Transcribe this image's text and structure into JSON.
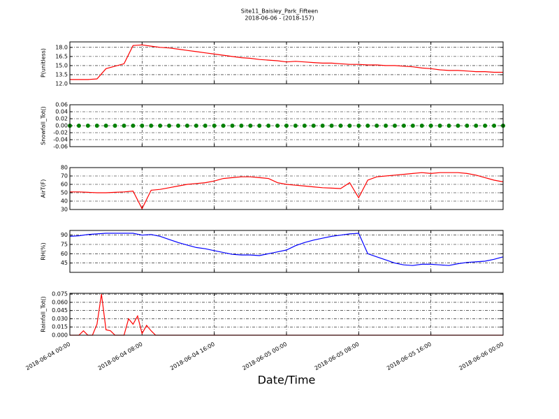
{
  "title": "Site11_Baisley_Park_Fifteen",
  "subtitle": "2018-06-06 - (2018-157)",
  "xlabel": "Date/Time",
  "xlim": [
    "2018-06-04 00:00",
    "2018-06-06 00:00"
  ],
  "xticks": [
    "2018-06-04 00:00",
    "2018-06-04 08:00",
    "2018-06-04 16:00",
    "2018-06-05 00:00",
    "2018-06-05 08:00",
    "2018-06-05 16:00",
    "2018-06-06 00:00"
  ],
  "chart_data": [
    {
      "type": "line",
      "ylabel": "P(unitless)",
      "color": "#ff0000",
      "grid": true,
      "ylim": [
        12,
        18.9
      ],
      "yticks": [
        {
          "value": 12,
          "label": "12.0"
        },
        13.5,
        {
          "value": 15,
          "label": "15.0"
        },
        16.5,
        {
          "value": 18,
          "label": "18.0"
        }
      ],
      "x": [
        "2018-06-04 00:00",
        "2018-06-04 01:00",
        "2018-06-04 02:00",
        "2018-06-04 03:00",
        "2018-06-04 04:00",
        "2018-06-04 05:00",
        "2018-06-04 06:00",
        "2018-06-04 07:00",
        "2018-06-04 08:00",
        "2018-06-04 09:00",
        "2018-06-04 10:00",
        "2018-06-04 11:00",
        "2018-06-04 12:00",
        "2018-06-04 13:00",
        "2018-06-04 14:00",
        "2018-06-04 15:00",
        "2018-06-04 16:00",
        "2018-06-04 17:00",
        "2018-06-04 18:00",
        "2018-06-04 19:00",
        "2018-06-04 20:00",
        "2018-06-04 21:00",
        "2018-06-04 22:00",
        "2018-06-04 23:00",
        "2018-06-05 00:00",
        "2018-06-05 01:00",
        "2018-06-05 02:00",
        "2018-06-05 03:00",
        "2018-06-05 04:00",
        "2018-06-05 05:00",
        "2018-06-05 06:00",
        "2018-06-05 07:00",
        "2018-06-05 08:00",
        "2018-06-05 09:00",
        "2018-06-05 10:00",
        "2018-06-05 11:00",
        "2018-06-05 12:00",
        "2018-06-05 13:00",
        "2018-06-05 14:00",
        "2018-06-05 15:00",
        "2018-06-05 16:00",
        "2018-06-05 17:00",
        "2018-06-05 18:00",
        "2018-06-05 19:00",
        "2018-06-05 20:00",
        "2018-06-05 21:00",
        "2018-06-05 22:00",
        "2018-06-05 23:00",
        "2018-06-06 00:00"
      ],
      "values": [
        12.7,
        12.7,
        12.7,
        12.8,
        14.5,
        14.9,
        15.3,
        18.3,
        18.4,
        18.2,
        18.0,
        17.9,
        17.7,
        17.5,
        17.3,
        17.1,
        16.9,
        16.7,
        16.5,
        16.3,
        16.2,
        16.0,
        15.9,
        15.8,
        15.6,
        15.7,
        15.6,
        15.5,
        15.4,
        15.4,
        15.3,
        15.2,
        15.2,
        15.1,
        15.1,
        15.0,
        15.0,
        14.9,
        14.8,
        14.6,
        14.5,
        14.3,
        14.2,
        14.2,
        14.1,
        14.0,
        14.0,
        13.9,
        13.9
      ]
    },
    {
      "type": "scatter",
      "ylabel": "Snowfall_Tot()",
      "color": "#008000",
      "grid": true,
      "ylim": [
        -0.06,
        0.06
      ],
      "yticks": [
        -0.06,
        -0.04,
        -0.02,
        {
          "value": 0,
          "label": "0.00"
        },
        0.02,
        0.04,
        0.06
      ],
      "x": [
        "2018-06-04 00:00",
        "2018-06-04 01:00",
        "2018-06-04 02:00",
        "2018-06-04 03:00",
        "2018-06-04 04:00",
        "2018-06-04 05:00",
        "2018-06-04 06:00",
        "2018-06-04 07:00",
        "2018-06-04 08:00",
        "2018-06-04 09:00",
        "2018-06-04 10:00",
        "2018-06-04 11:00",
        "2018-06-04 12:00",
        "2018-06-04 13:00",
        "2018-06-04 14:00",
        "2018-06-04 15:00",
        "2018-06-04 16:00",
        "2018-06-04 17:00",
        "2018-06-04 18:00",
        "2018-06-04 19:00",
        "2018-06-04 20:00",
        "2018-06-04 21:00",
        "2018-06-04 22:00",
        "2018-06-04 23:00",
        "2018-06-05 00:00",
        "2018-06-05 01:00",
        "2018-06-05 02:00",
        "2018-06-05 03:00",
        "2018-06-05 04:00",
        "2018-06-05 05:00",
        "2018-06-05 06:00",
        "2018-06-05 07:00",
        "2018-06-05 08:00",
        "2018-06-05 09:00",
        "2018-06-05 10:00",
        "2018-06-05 11:00",
        "2018-06-05 12:00",
        "2018-06-05 13:00",
        "2018-06-05 14:00",
        "2018-06-05 15:00",
        "2018-06-05 16:00",
        "2018-06-05 17:00",
        "2018-06-05 18:00",
        "2018-06-05 19:00",
        "2018-06-05 20:00",
        "2018-06-05 21:00",
        "2018-06-05 22:00",
        "2018-06-05 23:00",
        "2018-06-06 00:00"
      ],
      "values": [
        0,
        0,
        0,
        0,
        0,
        0,
        0,
        0,
        0,
        0,
        0,
        0,
        0,
        0,
        0,
        0,
        0,
        0,
        0,
        0,
        0,
        0,
        0,
        0,
        0,
        0,
        0,
        0,
        0,
        0,
        0,
        0,
        0,
        0,
        0,
        0,
        0,
        0,
        0,
        0,
        0,
        0,
        0,
        0,
        0,
        0,
        0,
        0,
        0
      ]
    },
    {
      "type": "line",
      "ylabel": "AirT(F)",
      "color": "#ff0000",
      "grid": true,
      "ylim": [
        30,
        80
      ],
      "yticks": [
        30,
        40,
        50,
        60,
        70,
        80
      ],
      "x": [
        "2018-06-04 00:00",
        "2018-06-04 01:00",
        "2018-06-04 02:00",
        "2018-06-04 03:00",
        "2018-06-04 04:00",
        "2018-06-04 05:00",
        "2018-06-04 06:00",
        "2018-06-04 07:00",
        "2018-06-04 08:00",
        "2018-06-04 09:00",
        "2018-06-04 10:00",
        "2018-06-04 11:00",
        "2018-06-04 12:00",
        "2018-06-04 13:00",
        "2018-06-04 14:00",
        "2018-06-04 15:00",
        "2018-06-04 16:00",
        "2018-06-04 17:00",
        "2018-06-04 18:00",
        "2018-06-04 19:00",
        "2018-06-04 20:00",
        "2018-06-04 21:00",
        "2018-06-04 22:00",
        "2018-06-04 23:00",
        "2018-06-05 00:00",
        "2018-06-05 01:00",
        "2018-06-05 02:00",
        "2018-06-05 03:00",
        "2018-06-05 04:00",
        "2018-06-05 05:00",
        "2018-06-05 06:00",
        "2018-06-05 07:00",
        "2018-06-05 08:00",
        "2018-06-05 09:00",
        "2018-06-05 10:00",
        "2018-06-05 11:00",
        "2018-06-05 12:00",
        "2018-06-05 13:00",
        "2018-06-05 14:00",
        "2018-06-05 15:00",
        "2018-06-05 16:00",
        "2018-06-05 17:00",
        "2018-06-05 18:00",
        "2018-06-05 19:00",
        "2018-06-05 20:00",
        "2018-06-05 21:00",
        "2018-06-05 22:00",
        "2018-06-05 23:00",
        "2018-06-06 00:00"
      ],
      "values": [
        51,
        51,
        50.5,
        50,
        50,
        50.5,
        51,
        52,
        31,
        53,
        54,
        56,
        58,
        60,
        61,
        62,
        64,
        67,
        68,
        69,
        69,
        68,
        67,
        62,
        60,
        59,
        58,
        57,
        56,
        55.5,
        55,
        62,
        44,
        65,
        69,
        70,
        71,
        72,
        73,
        74,
        73,
        74,
        74,
        74,
        73,
        71,
        68,
        65,
        63
      ]
    },
    {
      "type": "line",
      "ylabel": "RH(%)",
      "color": "#0000ff",
      "grid": true,
      "ylim": [
        30,
        97.5
      ],
      "yticks": [
        45,
        60,
        75,
        90
      ],
      "x": [
        "2018-06-04 00:00",
        "2018-06-04 01:00",
        "2018-06-04 02:00",
        "2018-06-04 03:00",
        "2018-06-04 04:00",
        "2018-06-04 05:00",
        "2018-06-04 06:00",
        "2018-06-04 07:00",
        "2018-06-04 08:00",
        "2018-06-04 09:00",
        "2018-06-04 10:00",
        "2018-06-04 11:00",
        "2018-06-04 12:00",
        "2018-06-04 13:00",
        "2018-06-04 14:00",
        "2018-06-04 15:00",
        "2018-06-04 16:00",
        "2018-06-04 17:00",
        "2018-06-04 18:00",
        "2018-06-04 19:00",
        "2018-06-04 20:00",
        "2018-06-04 21:00",
        "2018-06-04 22:00",
        "2018-06-04 23:00",
        "2018-06-05 00:00",
        "2018-06-05 01:00",
        "2018-06-05 02:00",
        "2018-06-05 03:00",
        "2018-06-05 04:00",
        "2018-06-05 05:00",
        "2018-06-05 06:00",
        "2018-06-05 07:00",
        "2018-06-05 08:00",
        "2018-06-05 09:00",
        "2018-06-05 10:00",
        "2018-06-05 11:00",
        "2018-06-05 12:00",
        "2018-06-05 13:00",
        "2018-06-05 14:00",
        "2018-06-05 15:00",
        "2018-06-05 16:00",
        "2018-06-05 17:00",
        "2018-06-05 18:00",
        "2018-06-05 19:00",
        "2018-06-05 20:00",
        "2018-06-05 21:00",
        "2018-06-05 22:00",
        "2018-06-05 23:00",
        "2018-06-06 00:00"
      ],
      "values": [
        88,
        89,
        91,
        92,
        93,
        93,
        93,
        93,
        90,
        91,
        88,
        83,
        78,
        74,
        70,
        68,
        65,
        62,
        59,
        58,
        58,
        57,
        60,
        63,
        66,
        73,
        78,
        82,
        85,
        88,
        90,
        92,
        93,
        60,
        55,
        50,
        45,
        42,
        41,
        43,
        43,
        42,
        41,
        44,
        46,
        47,
        48,
        51,
        55
      ]
    },
    {
      "type": "line",
      "ylabel": "Rainfall_Tot()",
      "color": "#ff0000",
      "grid": true,
      "ylim": [
        0,
        0.0765
      ],
      "yticks": [
        {
          "value": 0,
          "label": "0.000"
        },
        0.015,
        {
          "value": 0.03,
          "label": "0.030"
        },
        0.045,
        {
          "value": 0.06,
          "label": "0.060"
        },
        0.075
      ],
      "x": [
        "2018-06-04 00:00",
        "2018-06-04 00:30",
        "2018-06-04 01:00",
        "2018-06-04 01:30",
        "2018-06-04 02:00",
        "2018-06-04 02:30",
        "2018-06-04 03:00",
        "2018-06-04 03:30",
        "2018-06-04 04:00",
        "2018-06-04 04:30",
        "2018-06-04 05:00",
        "2018-06-04 05:30",
        "2018-06-04 06:00",
        "2018-06-04 06:30",
        "2018-06-04 07:00",
        "2018-06-04 07:30",
        "2018-06-04 08:00",
        "2018-06-04 08:30",
        "2018-06-04 09:00",
        "2018-06-04 09:30",
        "2018-06-04 10:00",
        "2018-06-04 12:00",
        "2018-06-06 00:00"
      ],
      "values": [
        0,
        0,
        0,
        0.008,
        0,
        0,
        0.02,
        0.075,
        0.01,
        0.008,
        0,
        0,
        0,
        0.03,
        0.02,
        0.035,
        0.003,
        0.018,
        0.008,
        0,
        0,
        0,
        0
      ]
    }
  ]
}
